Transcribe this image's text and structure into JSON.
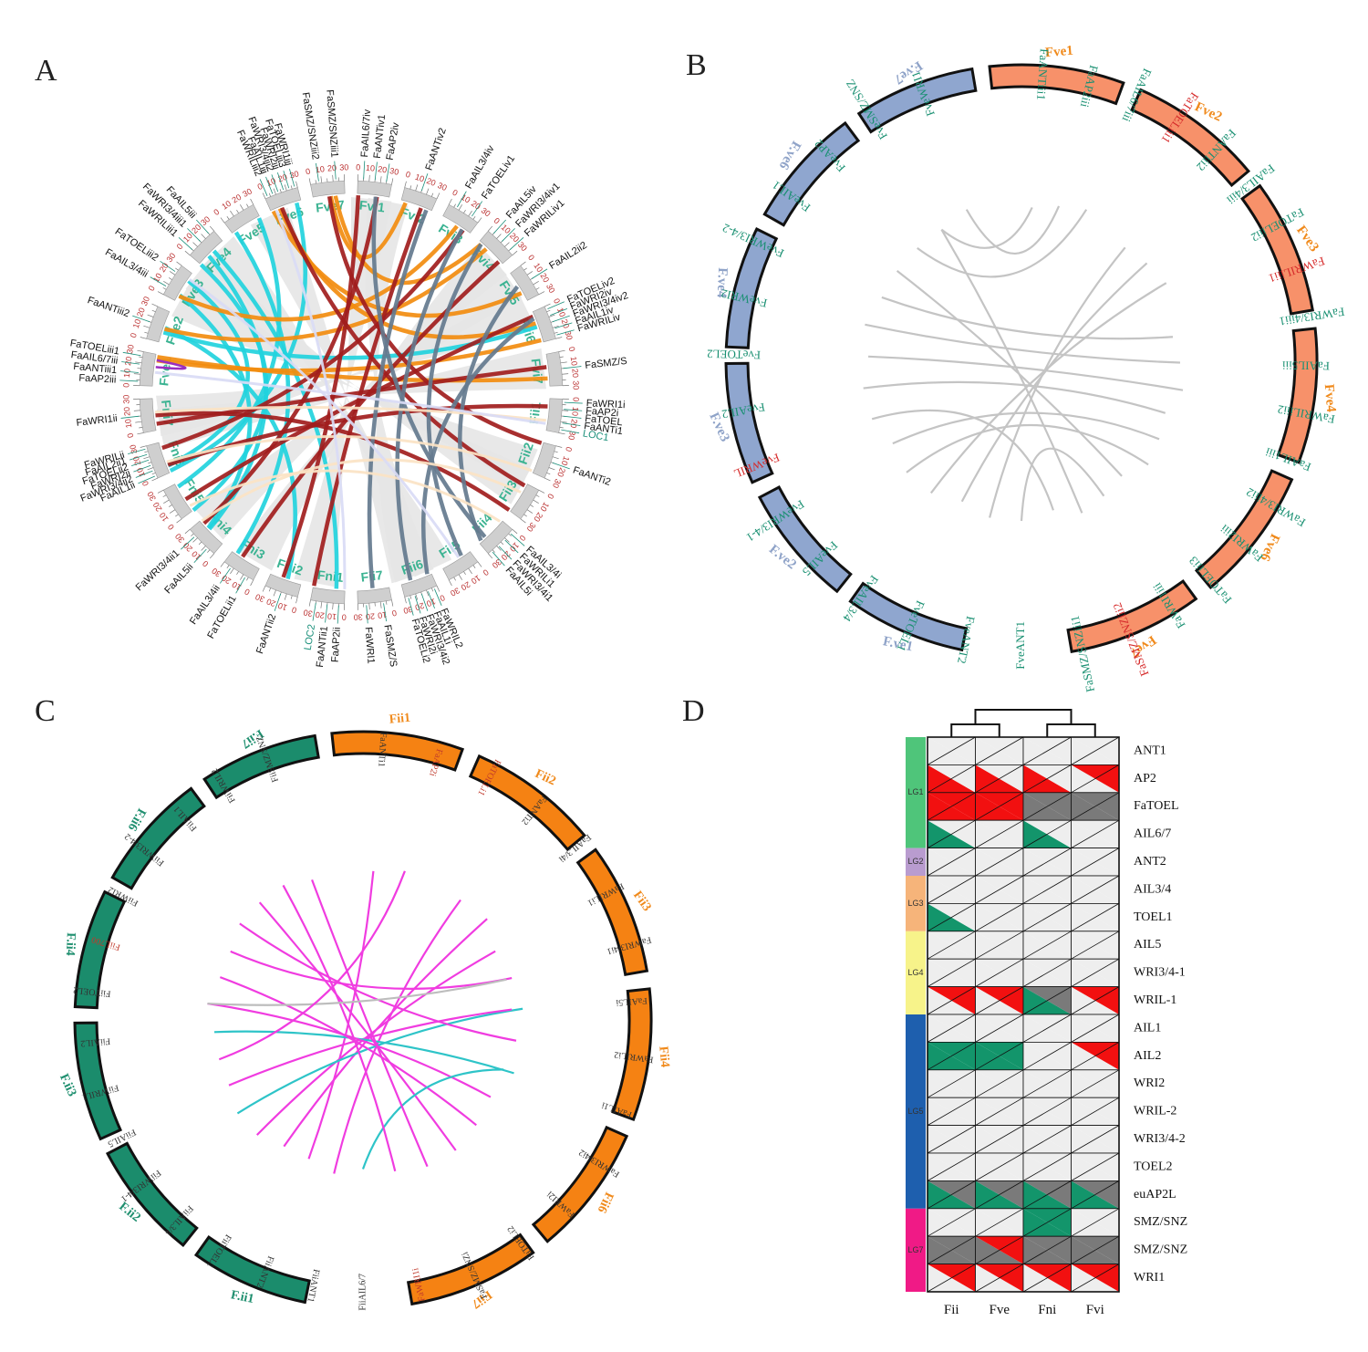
{
  "panels": {
    "a": "A",
    "b": "B",
    "c": "C",
    "d": "D"
  },
  "panel_a": {
    "colors": {
      "cyan": "#22d3dd",
      "orange": "#f28c0f",
      "darkred": "#a11d1d",
      "slate": "#647a8e",
      "beige": "#fbe3c4",
      "lavender": "#d9dbf5",
      "purple": "#9b2fc0",
      "ribbon_bg": "#e5e5e5"
    },
    "chromosomes": [
      "Fvi1",
      "Fvi2",
      "Fvi3",
      "Fvi4",
      "Fvi5",
      "Fvi6",
      "Fvi7",
      "Fii1",
      "Fii2",
      "Fii3",
      "Fii4",
      "Fii5",
      "Fii6",
      "Fii7",
      "Fni1",
      "Fni2",
      "Fni3",
      "Fni4",
      "Fni5",
      "Fni6",
      "Fni7",
      "Fve1",
      "Fve2",
      "Fve3",
      "Fve4",
      "Fve5",
      "Fve6",
      "Fve7"
    ],
    "tick_labels": [
      "0",
      "10",
      "20",
      "30"
    ],
    "genes": [
      {
        "name": "FaAIL6/7iv",
        "chr": "Fvi1"
      },
      {
        "name": "FaANTiv1",
        "chr": "Fvi1"
      },
      {
        "name": "FaAP2iv",
        "chr": "Fvi1"
      },
      {
        "name": "FaANTiv2",
        "chr": "Fvi2"
      },
      {
        "name": "FaAIL3/4iv",
        "chr": "Fvi3"
      },
      {
        "name": "FaTOELiv1",
        "chr": "Fvi3"
      },
      {
        "name": "FaAIL5iv",
        "chr": "Fvi4"
      },
      {
        "name": "FaWRI3/4iv1",
        "chr": "Fvi4"
      },
      {
        "name": "FaWRILiv1",
        "chr": "Fvi4"
      },
      {
        "name": "FaAIL2ii2",
        "chr": "Fvi5"
      },
      {
        "name": "FaTOELiv2",
        "chr": "Fvi6"
      },
      {
        "name": "FaWRI2iv",
        "chr": "Fvi6"
      },
      {
        "name": "FaWRI3/4iv2",
        "chr": "Fvi6"
      },
      {
        "name": "FaAIL1iv",
        "chr": "Fvi6"
      },
      {
        "name": "FaWRILiv",
        "chr": "Fvi6"
      },
      {
        "name": "FaSMZ/S",
        "chr": "Fvi7"
      },
      {
        "name": "FaWRI1i",
        "chr": "Fii1"
      },
      {
        "name": "FaAP2i",
        "chr": "Fii1"
      },
      {
        "name": "FaTOEL",
        "chr": "Fii1"
      },
      {
        "name": "FaANTi1",
        "chr": "Fii1"
      },
      {
        "name": "LOC1",
        "chr": "Fii1"
      },
      {
        "name": "FaANTi2",
        "chr": "Fii2"
      },
      {
        "name": "FaAIL3/4i",
        "chr": "Fii4"
      },
      {
        "name": "FaWRILi1",
        "chr": "Fii4"
      },
      {
        "name": "FaWRI3/4i1",
        "chr": "Fii4"
      },
      {
        "name": "FaAIL5i",
        "chr": "Fii4"
      },
      {
        "name": "FaWRIL2",
        "chr": "Fii6"
      },
      {
        "name": "FaAIL1i",
        "chr": "Fii6"
      },
      {
        "name": "FaWRI3/4i2",
        "chr": "Fii6"
      },
      {
        "name": "FaWRI2i",
        "chr": "Fii6"
      },
      {
        "name": "FaTOELi2",
        "chr": "Fii6"
      },
      {
        "name": "FaSMZ/S",
        "chr": "Fii7"
      },
      {
        "name": "FaWRI1",
        "chr": "Fii7"
      },
      {
        "name": "FaAP2ii",
        "chr": "Fni1"
      },
      {
        "name": "FaANTii1",
        "chr": "Fni1"
      },
      {
        "name": "LOC2",
        "chr": "Fni1"
      },
      {
        "name": "FaANTii2",
        "chr": "Fni2"
      },
      {
        "name": "FaTOELii1",
        "chr": "Fni3"
      },
      {
        "name": "FaAIL3/4ii",
        "chr": "Fni3"
      },
      {
        "name": "FaAIL5ii",
        "chr": "Fni4"
      },
      {
        "name": "FaWRI3/4ii1",
        "chr": "Fni4"
      },
      {
        "name": "FaAIL1ii",
        "chr": "Fni6"
      },
      {
        "name": "FaWRI3/4ii2",
        "chr": "Fni6"
      },
      {
        "name": "FaWRI2ii",
        "chr": "Fni6"
      },
      {
        "name": "FaTOELii2",
        "chr": "Fni6"
      },
      {
        "name": "FaAIL2ii1",
        "chr": "Fni6"
      },
      {
        "name": "FaWRILii",
        "chr": "Fni6"
      },
      {
        "name": "FaWRI1ii",
        "chr": "Fni7"
      },
      {
        "name": "FaAP2iii",
        "chr": "Fve1"
      },
      {
        "name": "FaANTiii1",
        "chr": "Fve1"
      },
      {
        "name": "FaAIL6/7iii",
        "chr": "Fve1"
      },
      {
        "name": "FaTOELiii1",
        "chr": "Fve1"
      },
      {
        "name": "FaANTiii2",
        "chr": "Fve2"
      },
      {
        "name": "FaAIL3/4iii",
        "chr": "Fve3"
      },
      {
        "name": "FaTOELiii2",
        "chr": "Fve3"
      },
      {
        "name": "FaWRILiii1",
        "chr": "Fve4"
      },
      {
        "name": "FaWRI3/4iii1",
        "chr": "Fve4"
      },
      {
        "name": "FaAIL5iii",
        "chr": "Fve4"
      },
      {
        "name": "FaWRILiii2",
        "chr": "Fve6"
      },
      {
        "name": "FaAIL1iii",
        "chr": "Fve6"
      },
      {
        "name": "FaWRI3/4iii2",
        "chr": "Fve6"
      },
      {
        "name": "FaWRI2iii",
        "chr": "Fve6"
      },
      {
        "name": "FaTOELiii3",
        "chr": "Fve6"
      },
      {
        "name": "FaWRI1iii",
        "chr": "Fve6"
      },
      {
        "name": "FaSMZ/SNZiii2",
        "chr": "Fve7"
      },
      {
        "name": "FaSMZ/SNZiii1",
        "chr": "Fve7"
      }
    ]
  },
  "panel_b": {
    "colors": {
      "orange_fill": "#f7916a",
      "blue_fill": "#8fa6cf",
      "link": "#c4c4c4"
    },
    "right_chromosomes": [
      "Fve1",
      "Fve2",
      "Fve3",
      "Fve4",
      "Fve6",
      "Fve7"
    ],
    "left_chromosomes": [
      "F.ve7",
      "F.ve6",
      "F.ve4",
      "F.ve3",
      "F.ve2",
      "F.ve1"
    ],
    "right_genes": [
      {
        "name": "FaANTiii1",
        "red": false
      },
      {
        "name": "FaAP2iii",
        "red": false
      },
      {
        "name": "FaAIL6/7iii",
        "red": false
      },
      {
        "name": "FaTOELiii1",
        "red": true
      },
      {
        "name": "FaANTiii2",
        "red": false
      },
      {
        "name": "FaAIL3/4iii",
        "red": false
      },
      {
        "name": "FaTOELiii2",
        "red": false
      },
      {
        "name": "FaWRILiii1",
        "red": true
      },
      {
        "name": "FaWRI3/4iii1",
        "red": false
      },
      {
        "name": "FaAIL5iii",
        "red": false
      },
      {
        "name": "FaWRILiii2",
        "red": false
      },
      {
        "name": "FaAIL1iii",
        "red": false
      },
      {
        "name": "FaWRI3/4iii2",
        "red": false
      },
      {
        "name": "FaWRI2iii",
        "red": false
      },
      {
        "name": "FaTOELiii3",
        "red": false
      },
      {
        "name": "FaWRI1iii",
        "red": false
      },
      {
        "name": "FaSMZ/SNZiii2",
        "red": true
      },
      {
        "name": "FaSMZ/SNZiii1",
        "red": false
      }
    ],
    "left_genes": [
      {
        "name": "FveWRI1",
        "red": false
      },
      {
        "name": "FveSMZ/SNZ",
        "red": false
      },
      {
        "name": "FveAP2",
        "red": false
      },
      {
        "name": "FveAIL1",
        "red": false
      },
      {
        "name": "FveWRI3/4-2",
        "red": false
      },
      {
        "name": "FveWRI2",
        "red": false
      },
      {
        "name": "FveTOEL2",
        "red": false
      },
      {
        "name": "FveAIL2",
        "red": false
      },
      {
        "name": "FveWRIL",
        "red": true
      },
      {
        "name": "FveWRI3/4-1",
        "red": false
      },
      {
        "name": "FveAIL5",
        "red": false
      },
      {
        "name": "FveAIL3/4",
        "red": false
      },
      {
        "name": "FveTOEL1",
        "red": false
      },
      {
        "name": "FveANT2",
        "red": false
      },
      {
        "name": "FveANT1",
        "red": false
      }
    ]
  },
  "panel_c": {
    "colors": {
      "orange_fill": "#f58213",
      "green_fill": "#1b8c6c",
      "magenta": "#f03ce0",
      "cyan": "#2ec4c8",
      "gray": "#bdbdbd"
    },
    "right_chromosomes": [
      "Fii1",
      "Fii2",
      "Fii3",
      "Fii4",
      "Fii6",
      "Fii7"
    ],
    "left_chromosomes": [
      "F.ii7",
      "F.ii6",
      "F.ii4",
      "F.ii3",
      "F.ii2",
      "F.ii1"
    ],
    "right_genes": [
      {
        "name": "FaANTi1",
        "red": false
      },
      {
        "name": "FaAP2i",
        "red": true
      },
      {
        "name": "FaTOELi1",
        "red": true
      },
      {
        "name": "FaANTi2",
        "red": false
      },
      {
        "name": "FaAIL3/4i",
        "red": false
      },
      {
        "name": "FaWRILi1",
        "red": false
      },
      {
        "name": "FaWRI3/4i1",
        "red": false
      },
      {
        "name": "FaAIL5i",
        "red": false
      },
      {
        "name": "FaWRILi2",
        "red": false
      },
      {
        "name": "FaAIL1i",
        "red": false
      },
      {
        "name": "FaWRI3/4i2",
        "red": false
      },
      {
        "name": "FaWRI2i",
        "red": false
      },
      {
        "name": "FaTOELi2",
        "red": false
      },
      {
        "name": "FaSMZ/SNZi",
        "red": false
      },
      {
        "name": "FaWRI1i",
        "red": true
      }
    ],
    "left_genes": [
      {
        "name": "FiiSMZ/SNZ",
        "red": false
      },
      {
        "name": "FiiWRIL2",
        "red": false
      },
      {
        "name": "FiiAIL1",
        "red": false
      },
      {
        "name": "FiiWRI3/4-2",
        "red": false
      },
      {
        "name": "FiiWRI2",
        "red": false
      },
      {
        "name": "FiiL700",
        "red": true
      },
      {
        "name": "FiiTOEL2",
        "red": false
      },
      {
        "name": "FiiAIL2",
        "red": false
      },
      {
        "name": "FiiWRIL1",
        "red": false
      },
      {
        "name": "FiiAIL5",
        "red": false
      },
      {
        "name": "FiiWRI3/4-1",
        "red": false
      },
      {
        "name": "FiiAIL3/4",
        "red": false
      },
      {
        "name": "FiiTOEL1",
        "red": false
      },
      {
        "name": "FiiANT2",
        "red": false
      },
      {
        "name": "FiiANT1",
        "red": false
      },
      {
        "name": "FiiAIL6/7",
        "red": false
      }
    ]
  },
  "panel_d": {
    "colors": {
      "red": "#f21010",
      "green": "#13956b",
      "gray": "#7a7a7a",
      "empty": "#eeeeee"
    },
    "columns": [
      "Fii",
      "Fve",
      "Fni",
      "Fvi"
    ],
    "groups": [
      {
        "name": "LG1",
        "color": "#4fc57a",
        "rows": 4
      },
      {
        "name": "LG2",
        "color": "#b99ccf",
        "rows": 1
      },
      {
        "name": "LG3",
        "color": "#f6b47a",
        "rows": 2
      },
      {
        "name": "LG4",
        "color": "#f7f38a",
        "rows": 3
      },
      {
        "name": "LG5",
        "color": "#1e5fae",
        "rows": 7
      },
      {
        "name": "LG7",
        "color": "#f01a86",
        "rows": 3
      }
    ],
    "rows": [
      {
        "label": "ANT1",
        "cells": [
          [
            "e",
            "e"
          ],
          [
            "e",
            "e"
          ],
          [
            "e",
            "e"
          ],
          [
            "e",
            "e"
          ]
        ]
      },
      {
        "label": "AP2",
        "cells": [
          [
            "r",
            "e"
          ],
          [
            "r",
            "e"
          ],
          [
            "r",
            "e"
          ],
          [
            "e",
            "r"
          ]
        ]
      },
      {
        "label": "FaTOEL",
        "cells": [
          [
            "r",
            "r"
          ],
          [
            "r",
            "r"
          ],
          [
            "g",
            "g"
          ],
          [
            "g",
            "g"
          ]
        ]
      },
      {
        "label": "AIL6/7",
        "cells": [
          [
            "G",
            "e"
          ],
          [
            "e",
            "e"
          ],
          [
            "G",
            "e"
          ],
          [
            "e",
            "e"
          ]
        ]
      },
      {
        "label": "ANT2",
        "cells": [
          [
            "e",
            "e"
          ],
          [
            "e",
            "e"
          ],
          [
            "e",
            "e"
          ],
          [
            "e",
            "e"
          ]
        ]
      },
      {
        "label": "AIL3/4",
        "cells": [
          [
            "e",
            "e"
          ],
          [
            "e",
            "e"
          ],
          [
            "e",
            "e"
          ],
          [
            "e",
            "e"
          ]
        ]
      },
      {
        "label": "TOEL1",
        "cells": [
          [
            "G",
            "e"
          ],
          [
            "e",
            "e"
          ],
          [
            "e",
            "e"
          ],
          [
            "e",
            "e"
          ]
        ]
      },
      {
        "label": "AIL5",
        "cells": [
          [
            "e",
            "e"
          ],
          [
            "e",
            "e"
          ],
          [
            "e",
            "e"
          ],
          [
            "e",
            "e"
          ]
        ]
      },
      {
        "label": "WRI3/4-1",
        "cells": [
          [
            "e",
            "e"
          ],
          [
            "e",
            "e"
          ],
          [
            "e",
            "e"
          ],
          [
            "e",
            "e"
          ]
        ]
      },
      {
        "label": "WRIL-1",
        "cells": [
          [
            "e",
            "r"
          ],
          [
            "e",
            "r"
          ],
          [
            "G",
            "g"
          ],
          [
            "e",
            "r"
          ]
        ]
      },
      {
        "label": "AIL1",
        "cells": [
          [
            "e",
            "e"
          ],
          [
            "e",
            "e"
          ],
          [
            "e",
            "e"
          ],
          [
            "e",
            "e"
          ]
        ]
      },
      {
        "label": "AIL2",
        "cells": [
          [
            "G",
            "G"
          ],
          [
            "G",
            "G"
          ],
          [
            "e",
            "e"
          ],
          [
            "e",
            "r"
          ]
        ]
      },
      {
        "label": "WRI2",
        "cells": [
          [
            "e",
            "e"
          ],
          [
            "e",
            "e"
          ],
          [
            "e",
            "e"
          ],
          [
            "e",
            "e"
          ]
        ]
      },
      {
        "label": "WRIL-2",
        "cells": [
          [
            "e",
            "e"
          ],
          [
            "e",
            "e"
          ],
          [
            "e",
            "e"
          ],
          [
            "e",
            "e"
          ]
        ]
      },
      {
        "label": "WRI3/4-2",
        "cells": [
          [
            "e",
            "e"
          ],
          [
            "e",
            "e"
          ],
          [
            "e",
            "e"
          ],
          [
            "e",
            "e"
          ]
        ]
      },
      {
        "label": "TOEL2",
        "cells": [
          [
            "e",
            "e"
          ],
          [
            "e",
            "e"
          ],
          [
            "e",
            "e"
          ],
          [
            "e",
            "e"
          ]
        ]
      },
      {
        "label": "euAP2L",
        "cells": [
          [
            "G",
            "g"
          ],
          [
            "G",
            "g"
          ],
          [
            "G",
            "g"
          ],
          [
            "G",
            "g"
          ]
        ]
      },
      {
        "label": "SMZ/SNZ",
        "cells": [
          [
            "e",
            "e"
          ],
          [
            "e",
            "e"
          ],
          [
            "G",
            "G"
          ],
          [
            "e",
            "e"
          ]
        ]
      },
      {
        "label": "SMZ/SNZ",
        "cells": [
          [
            "g",
            "g"
          ],
          [
            "g",
            "r"
          ],
          [
            "g",
            "g"
          ],
          [
            "g",
            "g"
          ]
        ]
      },
      {
        "label": "WRI1",
        "cells": [
          [
            "e",
            "r"
          ],
          [
            "e",
            "r"
          ],
          [
            "e",
            "r"
          ],
          [
            "e",
            "r"
          ]
        ]
      }
    ]
  }
}
